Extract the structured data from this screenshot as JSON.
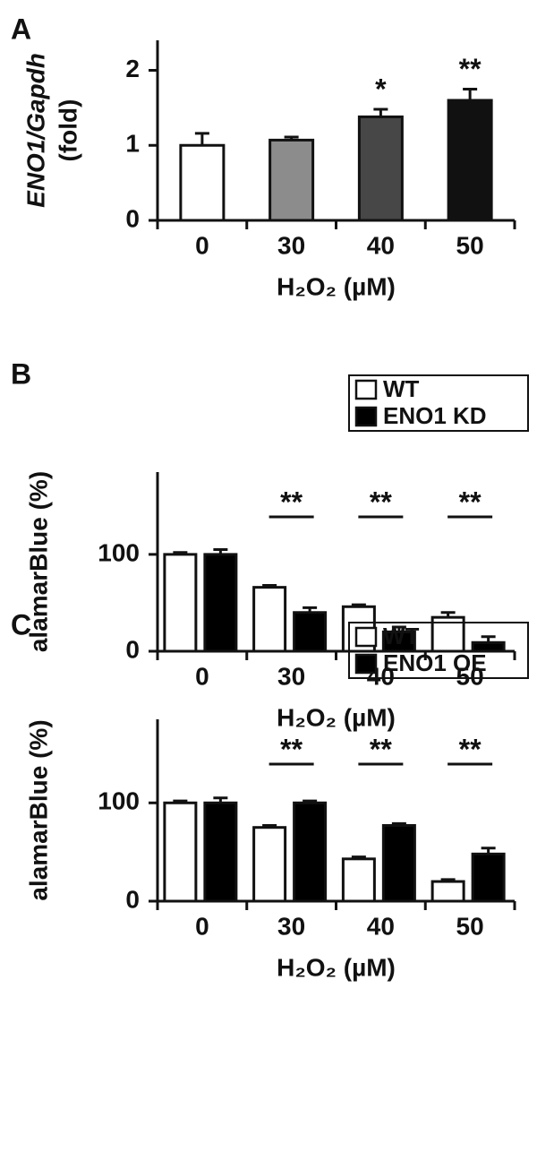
{
  "chart_data": [
    {
      "type": "bar",
      "panel_label": "A",
      "ylabel": "ENO1/Gapdh",
      "ylabel_unit": "(fold)",
      "xlabel": "H₂O₂ (µM)",
      "categories": [
        "0",
        "30",
        "40",
        "50"
      ],
      "values": [
        1.0,
        1.07,
        1.38,
        1.6
      ],
      "errors": [
        0.16,
        0.04,
        0.1,
        0.15
      ],
      "colors": [
        "#ffffff",
        "#8c8c8c",
        "#474747",
        "#111111"
      ],
      "significance": [
        null,
        null,
        "*",
        "**"
      ],
      "ylim": [
        0,
        2.4
      ],
      "yticks": [
        0,
        1,
        2
      ]
    },
    {
      "type": "grouped_bar",
      "panel_label": "B",
      "ylabel": "alamarBlue (%)",
      "xlabel": "H₂O₂ (µM)",
      "categories": [
        "0",
        "30",
        "40",
        "50"
      ],
      "legend": "upper right",
      "series": [
        {
          "name": "WT",
          "color": "#ffffff",
          "values": [
            100,
            66,
            46,
            35
          ],
          "errors": [
            2,
            2,
            2,
            5
          ]
        },
        {
          "name": "ENO1 KD",
          "color": "#000000",
          "values": [
            100,
            40,
            20,
            9
          ],
          "errors": [
            5,
            5,
            5,
            6
          ]
        }
      ],
      "significance": [
        null,
        "**",
        "**",
        "**"
      ],
      "ylim": [
        0,
        185
      ],
      "yticks": [
        0,
        100
      ]
    },
    {
      "type": "grouped_bar",
      "panel_label": "C",
      "ylabel": "alamarBlue (%)",
      "xlabel": "H₂O₂ (µM)",
      "categories": [
        "0",
        "30",
        "40",
        "50"
      ],
      "legend": "upper right",
      "series": [
        {
          "name": "WT",
          "color": "#ffffff",
          "values": [
            100,
            75,
            43,
            20
          ],
          "errors": [
            2,
            2,
            2,
            2
          ]
        },
        {
          "name": "ENO1 OE",
          "color": "#000000",
          "values": [
            100,
            100,
            77,
            48
          ],
          "errors": [
            5,
            2,
            2,
            6
          ]
        }
      ],
      "significance": [
        null,
        "**",
        "**",
        "**"
      ],
      "ylim": [
        0,
        185
      ],
      "yticks": [
        0,
        100
      ]
    }
  ]
}
